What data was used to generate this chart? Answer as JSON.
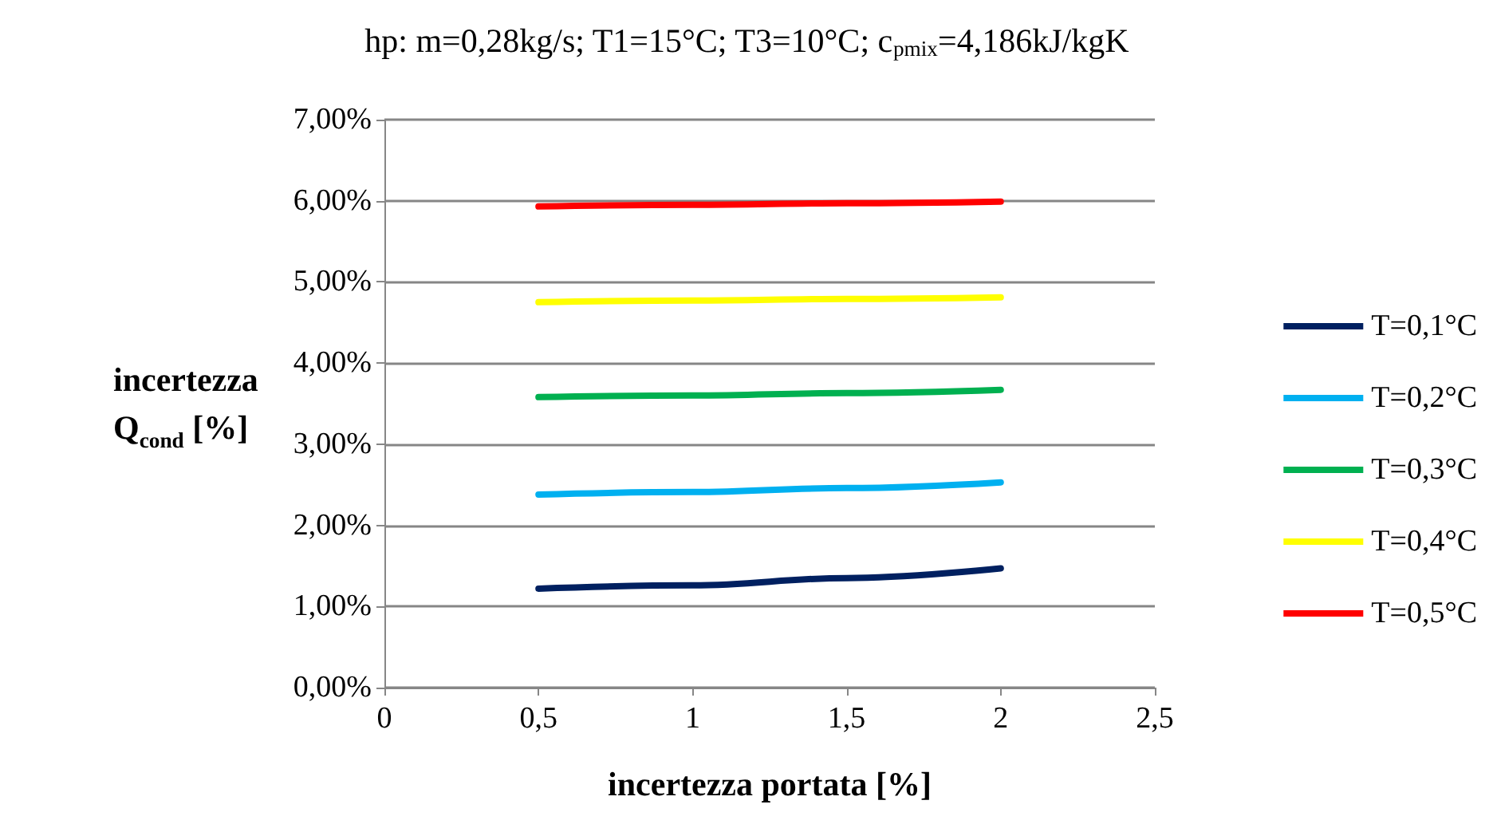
{
  "chart_data": {
    "type": "line",
    "title": "hp: m=0,28kg/s; T1=15°C; T3=10°C; c$_{p}$$_{mix}$=4,186kJ/kgK",
    "xlabel": "incertezza portata [%]",
    "ylabel": "incertezza Q$_{cond}$ [%]",
    "x": [
      0.5,
      1,
      1.5,
      2
    ],
    "series": [
      {
        "name": "T=0,1°C",
        "color": "#002060",
        "values": [
          1.22,
          1.26,
          1.35,
          1.47
        ]
      },
      {
        "name": "T=0,2°C",
        "color": "#00b0f0",
        "values": [
          2.38,
          2.41,
          2.46,
          2.53
        ]
      },
      {
        "name": "T=0,3°C",
        "color": "#00b050",
        "values": [
          3.58,
          3.6,
          3.63,
          3.67
        ]
      },
      {
        "name": "T=0,4°C",
        "color": "#ffff00",
        "values": [
          4.75,
          4.77,
          4.79,
          4.81
        ]
      },
      {
        "name": "T=0,5°C",
        "color": "#ff0000",
        "values": [
          5.93,
          5.95,
          5.97,
          5.99
        ]
      }
    ],
    "xlim": [
      0,
      2.5
    ],
    "xticks": [
      0,
      {
        "value": 0.5,
        "label": "0,5"
      },
      1,
      {
        "value": 1.5,
        "label": "1,5"
      },
      2,
      {
        "value": 2.5,
        "label": "2,5"
      }
    ],
    "ylim": [
      0,
      7
    ],
    "yticks": [
      {
        "value": 0,
        "label": "0,00%"
      },
      {
        "value": 1,
        "label": "1,00%"
      },
      {
        "value": 2,
        "label": "2,00%"
      },
      {
        "value": 3,
        "label": "3,00%"
      },
      {
        "value": 4,
        "label": "4,00%"
      },
      {
        "value": 5,
        "label": "5,00%"
      },
      {
        "value": 6,
        "label": "6,00%"
      },
      {
        "value": 7,
        "label": "7,00%"
      }
    ],
    "grid": "y",
    "legend": "right",
    "marker": "none",
    "line_style": "solid"
  }
}
